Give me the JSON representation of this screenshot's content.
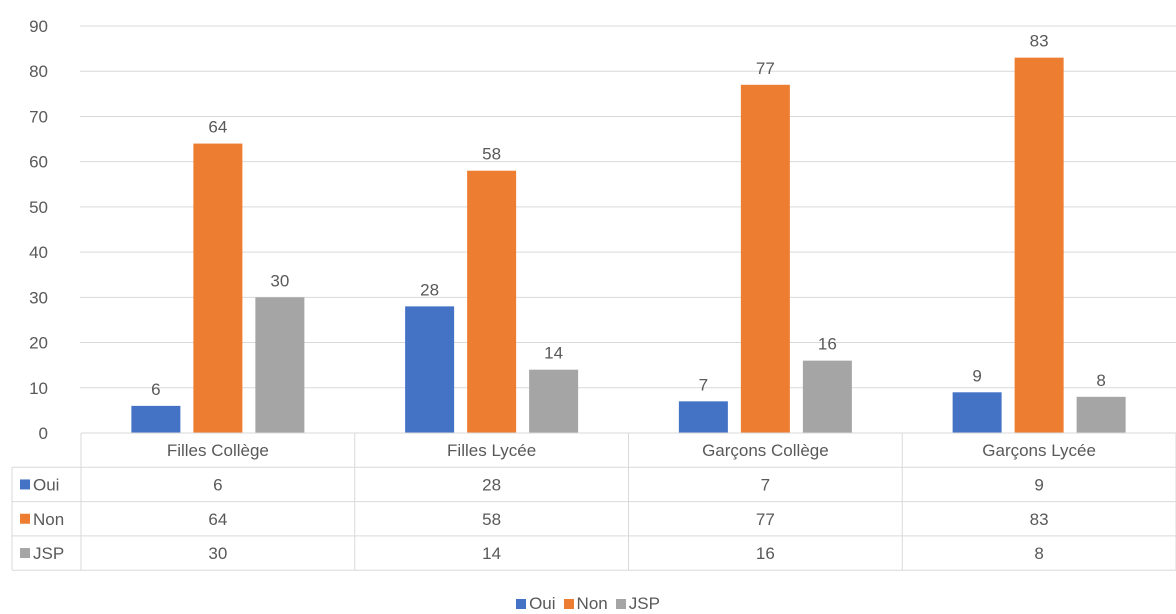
{
  "chart_data": {
    "type": "bar",
    "categories": [
      "Filles Collège",
      "Filles Lycée",
      "Garçons Collège",
      "Garçons Lycée"
    ],
    "series": [
      {
        "name": "Oui",
        "values": [
          6,
          28,
          7,
          9
        ],
        "color": "#4472C4"
      },
      {
        "name": "Non",
        "values": [
          64,
          58,
          77,
          83
        ],
        "color": "#ED7D31"
      },
      {
        "name": "JSP",
        "values": [
          30,
          14,
          16,
          8
        ],
        "color": "#A5A5A5"
      }
    ],
    "ylim": [
      0,
      90
    ],
    "yticks": [
      "0",
      "10",
      "20",
      "30",
      "40",
      "50",
      "60",
      "70",
      "80",
      "90"
    ],
    "grid": true,
    "data_labels": true,
    "data_table": true,
    "legend": "bottom"
  }
}
